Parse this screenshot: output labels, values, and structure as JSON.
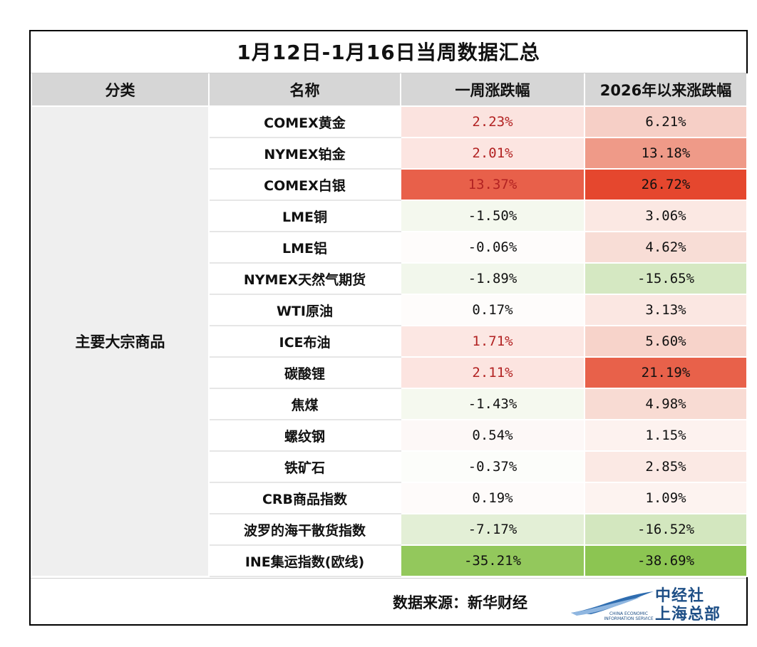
{
  "title": "1月12日-1月16日当周数据汇总",
  "headers": [
    "分类",
    "名称",
    "一周涨跌幅",
    "2026年以来涨跌幅"
  ],
  "category": "主要大宗商品",
  "rows": [
    {
      "name": "COMEX黄金",
      "week": "2.23%",
      "ytd": "6.21%",
      "week_bg": "#fbe3df",
      "ytd_bg": "#f6cfc6",
      "week_color": "#b22222"
    },
    {
      "name": "NYMEX铂金",
      "week": "2.01%",
      "ytd": "13.18%",
      "week_bg": "#fce5e1",
      "ytd_bg": "#ef9a88",
      "week_color": "#b22222"
    },
    {
      "name": "COMEX白银",
      "week": "13.37%",
      "ytd": "26.72%",
      "week_bg": "#e8604a",
      "ytd_bg": "#e5472e",
      "week_color": "#b22222"
    },
    {
      "name": "LME铜",
      "week": "-1.50%",
      "ytd": "3.06%",
      "week_bg": "#f4f8ee",
      "ytd_bg": "#fbe8e3",
      "week_color": "#111111"
    },
    {
      "name": "LME铝",
      "week": "-0.06%",
      "ytd": "4.62%",
      "week_bg": "#fefcfb",
      "ytd_bg": "#f8ddd6",
      "week_color": "#111111"
    },
    {
      "name": "NYMEX天然气期货",
      "week": "-1.89%",
      "ytd": "-15.65%",
      "week_bg": "#f2f7ec",
      "ytd_bg": "#d5e8c2",
      "week_color": "#111111"
    },
    {
      "name": "WTI原油",
      "week": "0.17%",
      "ytd": "3.13%",
      "week_bg": "#fefcfb",
      "ytd_bg": "#fbe7e2",
      "week_color": "#111111"
    },
    {
      "name": "ICE布油",
      "week": "1.71%",
      "ytd": "5.60%",
      "week_bg": "#fce7e3",
      "ytd_bg": "#f7d3ca",
      "week_color": "#b22222"
    },
    {
      "name": "碳酸锂",
      "week": "2.11%",
      "ytd": "21.19%",
      "week_bg": "#fce4e0",
      "ytd_bg": "#e8614a",
      "week_color": "#b22222"
    },
    {
      "name": "焦煤",
      "week": "-1.43%",
      "ytd": "4.98%",
      "week_bg": "#f5f9ef",
      "ytd_bg": "#f8dbd3",
      "week_color": "#111111"
    },
    {
      "name": "螺纹钢",
      "week": "0.54%",
      "ytd": "1.15%",
      "week_bg": "#fdf8f7",
      "ytd_bg": "#fdf2ef",
      "week_color": "#111111"
    },
    {
      "name": "铁矿石",
      "week": "-0.37%",
      "ytd": "2.85%",
      "week_bg": "#fcfdfa",
      "ytd_bg": "#fbe9e4",
      "week_color": "#111111"
    },
    {
      "name": "CRB商品指数",
      "week": "0.19%",
      "ytd": "1.09%",
      "week_bg": "#fefbfa",
      "ytd_bg": "#fdf3f0",
      "week_color": "#111111"
    },
    {
      "name": "波罗的海干散货指数",
      "week": "-7.17%",
      "ytd": "-16.52%",
      "week_bg": "#e3efd6",
      "ytd_bg": "#d3e7bf",
      "week_color": "#111111"
    },
    {
      "name": "INE集运指数(欧线)",
      "week": "-35.21%",
      "ytd": "-38.69%",
      "week_bg": "#93c85c",
      "ytd_bg": "#8cc552",
      "week_color": "#111111"
    }
  ],
  "footer": {
    "source": "数据来源：新华财经",
    "logo_line1": "中经社",
    "logo_line2": "上海总部",
    "logo_en": "CHINA ECONOMIC INFORMATION SERVICE"
  }
}
